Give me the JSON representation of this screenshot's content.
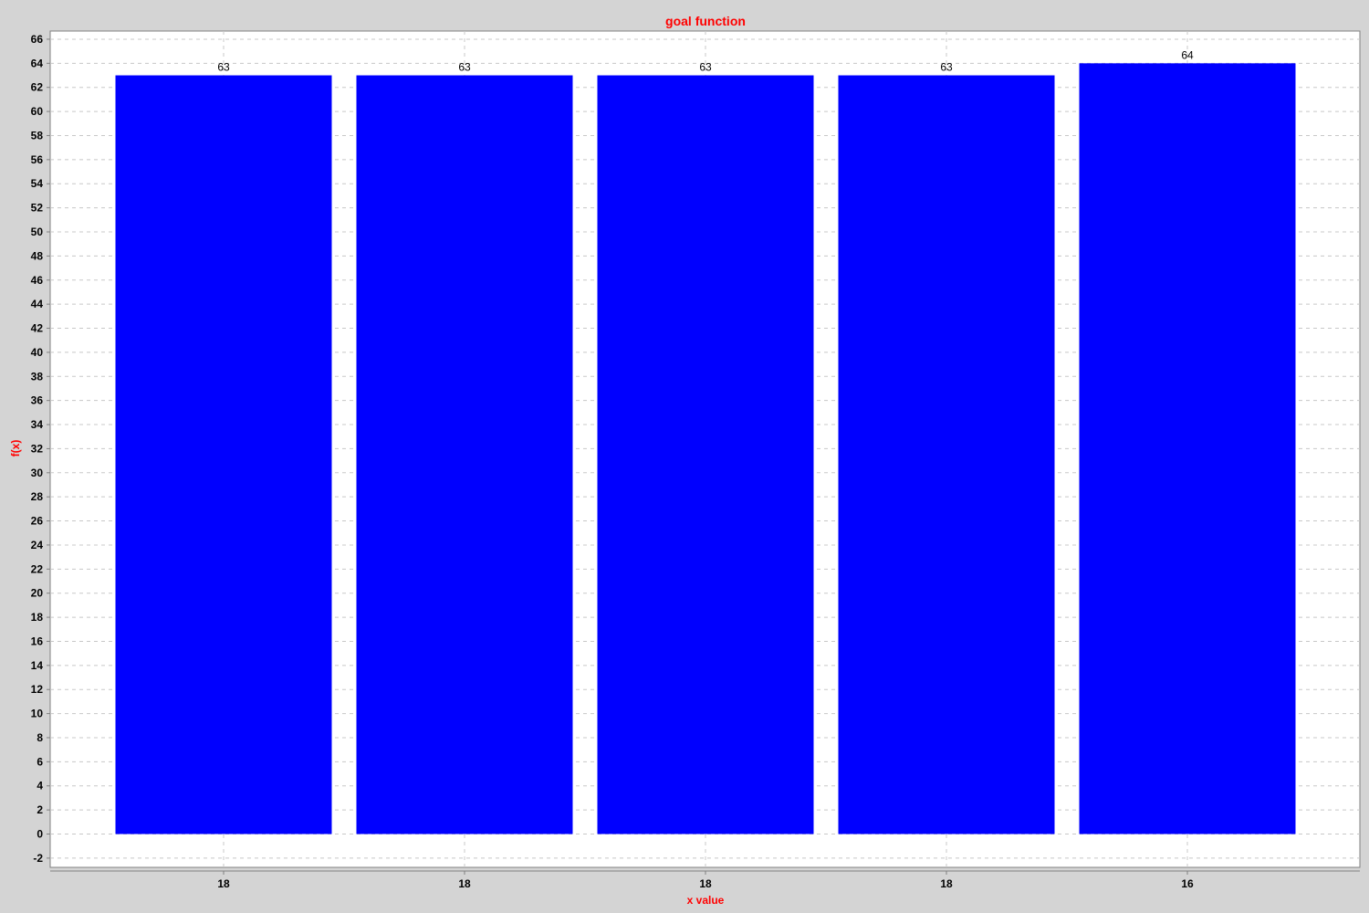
{
  "chart_data": {
    "type": "bar",
    "title": "goal function",
    "xlabel": "x value",
    "ylabel": "f(x)",
    "categories": [
      "18",
      "18",
      "18",
      "18",
      "16"
    ],
    "values": [
      63,
      63,
      63,
      63,
      64
    ],
    "data_labels": [
      "63",
      "63",
      "63",
      "63",
      "64"
    ],
    "ylim": [
      -3,
      67
    ],
    "yticks": [
      "-2",
      "0",
      "2",
      "4",
      "6",
      "8",
      "10",
      "12",
      "14",
      "16",
      "18",
      "20",
      "22",
      "24",
      "26",
      "28",
      "30",
      "32",
      "34",
      "36",
      "38",
      "40",
      "42",
      "44",
      "46",
      "48",
      "50",
      "52",
      "54",
      "56",
      "58",
      "60",
      "62",
      "64",
      "66"
    ],
    "grid": true,
    "colors": {
      "bar": "#0000ff",
      "title": "#ff0000",
      "axis_label": "#ff0000",
      "plot_background": "#ffffff",
      "page_background": "#d4d4d4",
      "grid": "#c8c8c8"
    }
  }
}
